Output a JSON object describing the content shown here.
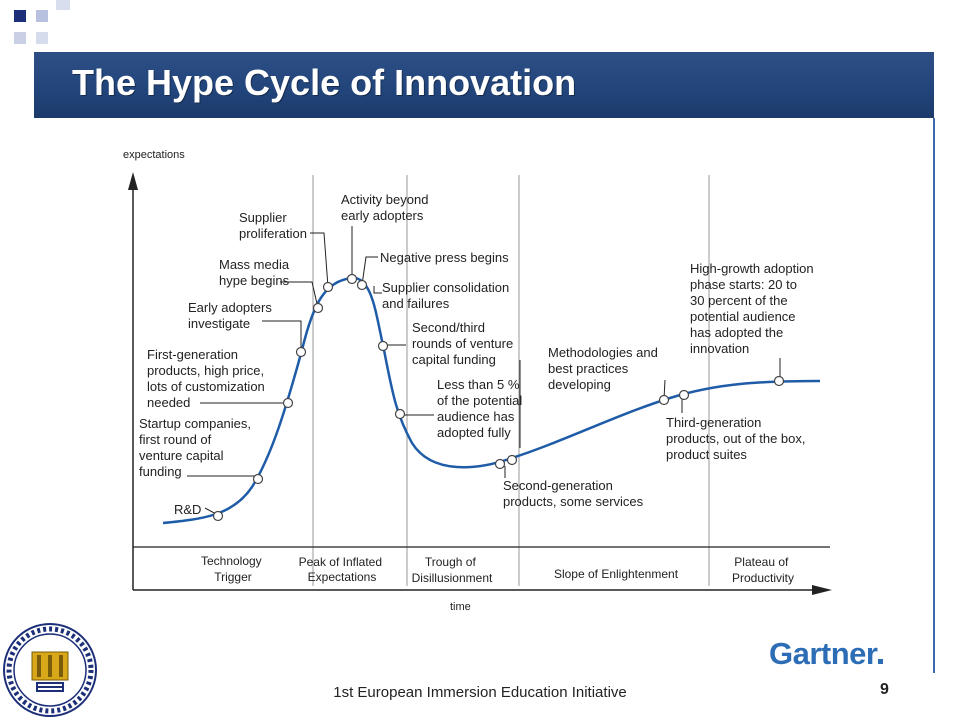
{
  "title": "The Hype Cycle of Innovation",
  "axes": {
    "y_label": "expectations",
    "x_label": "time"
  },
  "annotations": [
    [
      "R&D"
    ],
    [
      "Startup companies,",
      "first round of",
      "venture capital",
      "funding"
    ],
    [
      "First-generation",
      "products, high price,",
      "lots of customization",
      "needed"
    ],
    [
      "Early adopters",
      "investigate"
    ],
    [
      "Mass media",
      "hype begins"
    ],
    [
      "Supplier",
      "proliferation"
    ],
    [
      "Activity beyond",
      "early adopters"
    ],
    [
      "Negative press begins"
    ],
    [
      "Supplier consolidation",
      "and failures"
    ],
    [
      "Second/third",
      "rounds of venture",
      "capital funding"
    ],
    [
      "Less than 5 %",
      "of the potential",
      "audience has",
      "adopted fully"
    ],
    [
      "Second-generation",
      "products, some services"
    ],
    [
      "Methodologies and",
      "best practices",
      "developing"
    ],
    [
      "Third-generation",
      "products, out of the box,",
      "product suites"
    ],
    [
      "High-growth adoption",
      "phase starts: 20 to",
      "30 percent of the",
      "potential audience",
      "has adopted the",
      "innovation"
    ]
  ],
  "phases": [
    [
      "Technology",
      "Trigger"
    ],
    [
      "Peak of Inflated",
      "Expectations"
    ],
    [
      "Trough of",
      "Disillusionment"
    ],
    [
      "Slope of Enlightenment"
    ],
    [
      "Plateau of",
      "Productivity"
    ]
  ],
  "footer": "1st European Immersion Education Initiative",
  "page_number": "9",
  "logo_text": "Gartner",
  "colors": {
    "title_bar": "#21447a",
    "curve": "#1f5ca8",
    "logo": "#2d6db5",
    "accent_squares": "#1c2f78"
  }
}
